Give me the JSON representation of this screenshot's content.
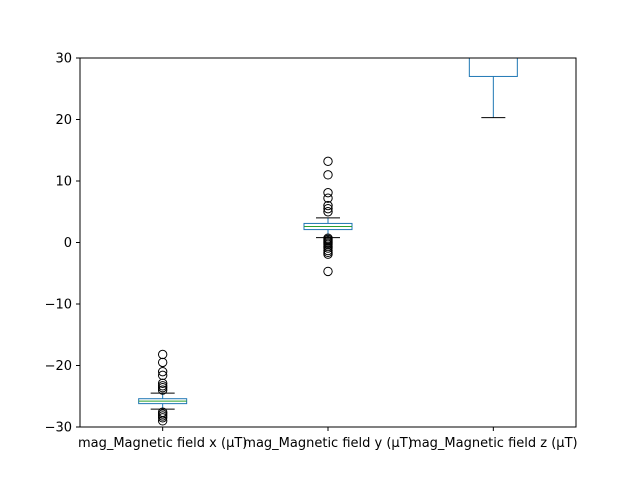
{
  "chart_data": {
    "type": "box",
    "title": "",
    "xlabel": "",
    "ylabel": "",
    "ylim": [
      -30,
      30
    ],
    "yticks": [
      -30,
      -20,
      -10,
      0,
      10,
      20,
      30
    ],
    "ytick_labels": [
      "−30",
      "−20",
      "−10",
      "0",
      "10",
      "20",
      "30"
    ],
    "grid": false,
    "legend": false,
    "categories": [
      "mag_Magnetic field x (µT)",
      "mag_Magnetic field y (µT)",
      "mag_Magnetic field z (µT)"
    ],
    "boxes": [
      {
        "whisker_low": -27.1,
        "q1": -26.2,
        "median": -25.8,
        "q3": -25.4,
        "whisker_high": -24.5,
        "outliers": [
          -18.2,
          -19.5,
          -21.0,
          -21.6,
          -22.9,
          -23.3,
          -23.6,
          -24.0,
          -27.6,
          -27.9,
          -28.2,
          -28.5,
          -29.0
        ]
      },
      {
        "whisker_low": 0.8,
        "q1": 2.1,
        "median": 2.6,
        "q3": 3.1,
        "whisker_high": 4.0,
        "outliers": [
          13.2,
          11.0,
          8.1,
          7.2,
          6.0,
          5.5,
          5.0,
          0.7,
          0.5,
          0.3,
          0.1,
          -0.1,
          -0.3,
          -0.6,
          -0.9,
          -1.3,
          -1.6,
          -1.9,
          -4.7
        ]
      },
      {
        "whisker_low": 20.3,
        "q1": 27.0,
        "median": null,
        "q3": null,
        "whisker_high": null,
        "outliers": []
      }
    ],
    "colors": {
      "box": "#1f77b4",
      "median": "#2ca02c",
      "whisker": "#1f77b4",
      "cap": "#000000",
      "flier": "#000000"
    }
  }
}
